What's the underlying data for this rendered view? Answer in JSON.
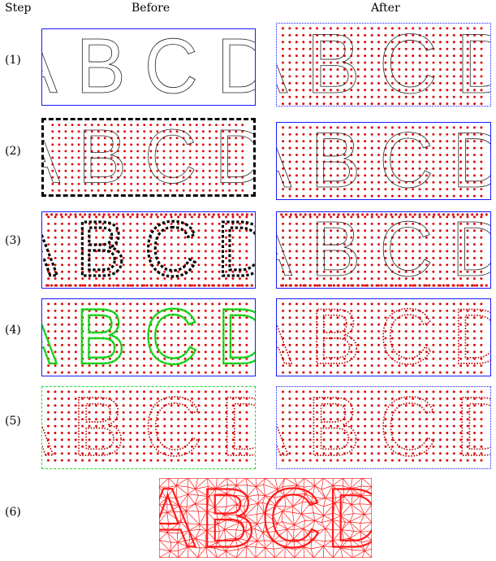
{
  "headers": {
    "step": "Step",
    "before": "Before",
    "after": "After"
  },
  "letters_text": "ABCD",
  "steps": [
    {
      "label": "(1)",
      "before": {
        "dots": false,
        "boxDots": false,
        "outline": "plain",
        "border": "blue"
      },
      "after": {
        "dots": true,
        "boxDots": false,
        "outline": "plain",
        "border": "blue-dotted"
      }
    },
    {
      "label": "(2)",
      "before": {
        "dots": true,
        "boxDots": false,
        "outline": "plain",
        "border": "black-dashed"
      },
      "after": {
        "dots": true,
        "boxDots": false,
        "outline": "plain",
        "border": "blue"
      }
    },
    {
      "label": "(3)",
      "before": {
        "dots": true,
        "boxDots": true,
        "outline": "black-dashed",
        "border": "blue"
      },
      "after": {
        "dots": true,
        "boxDots": true,
        "outline": "plain",
        "border": "blue"
      }
    },
    {
      "label": "(4)",
      "before": {
        "dots": true,
        "boxDots": false,
        "outline": "green",
        "border": "blue"
      },
      "after": {
        "dots": true,
        "boxDots": false,
        "outline": "red-dotted",
        "border": "blue"
      }
    },
    {
      "label": "(5)",
      "before": {
        "dots": true,
        "boxDots": false,
        "outline": "red-dotted",
        "border": "green"
      },
      "after": {
        "dots": true,
        "boxDots": false,
        "outline": "red-dotted",
        "border": "blue-dotted"
      }
    },
    {
      "label": "(6)"
    }
  ],
  "colors": {
    "panel_border": "#1a1aff",
    "dot": "#e00000",
    "green": "#22dd22",
    "mesh": "#ff1a1a"
  }
}
